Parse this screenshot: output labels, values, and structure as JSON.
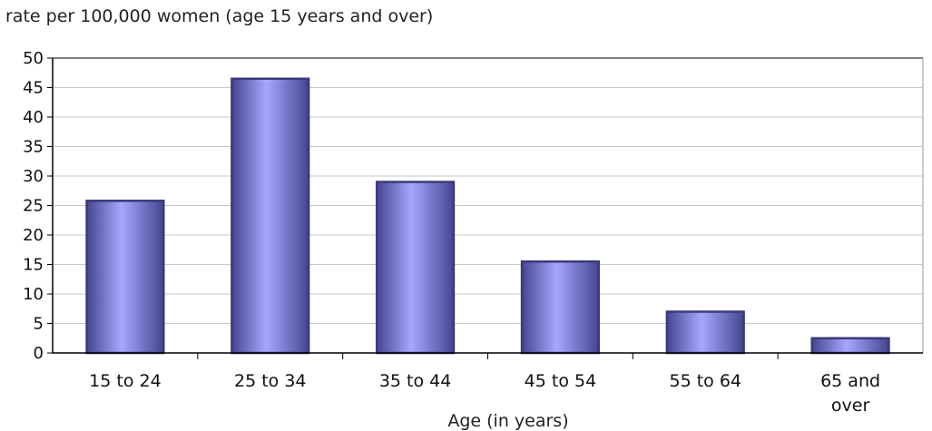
{
  "chart_data": {
    "type": "bar",
    "ylabel": "rate per 100,000 women (age 15 years and over)",
    "xlabel": "Age (in years)",
    "categories": [
      [
        "15 to 24"
      ],
      [
        "25 to 34"
      ],
      [
        "35 to 44"
      ],
      [
        "45 to 54"
      ],
      [
        "55 to 64"
      ],
      [
        "65 and",
        "over"
      ]
    ],
    "values": [
      25.8,
      46.5,
      29.0,
      15.5,
      7.0,
      2.5
    ],
    "ylim": [
      0,
      50
    ],
    "yticks": [
      "0",
      "5",
      "10",
      "15",
      "20",
      "25",
      "30",
      "35",
      "40",
      "45",
      "50"
    ],
    "grid": true,
    "legend": "none",
    "colors": {
      "bar_edge": "#3a3a7a",
      "bar_light": "#a7a7ff",
      "bar_mid": "#7c7cdd",
      "bar_dark": "#45458f",
      "grid": "#c8c8c8",
      "axis": "#000000"
    }
  }
}
